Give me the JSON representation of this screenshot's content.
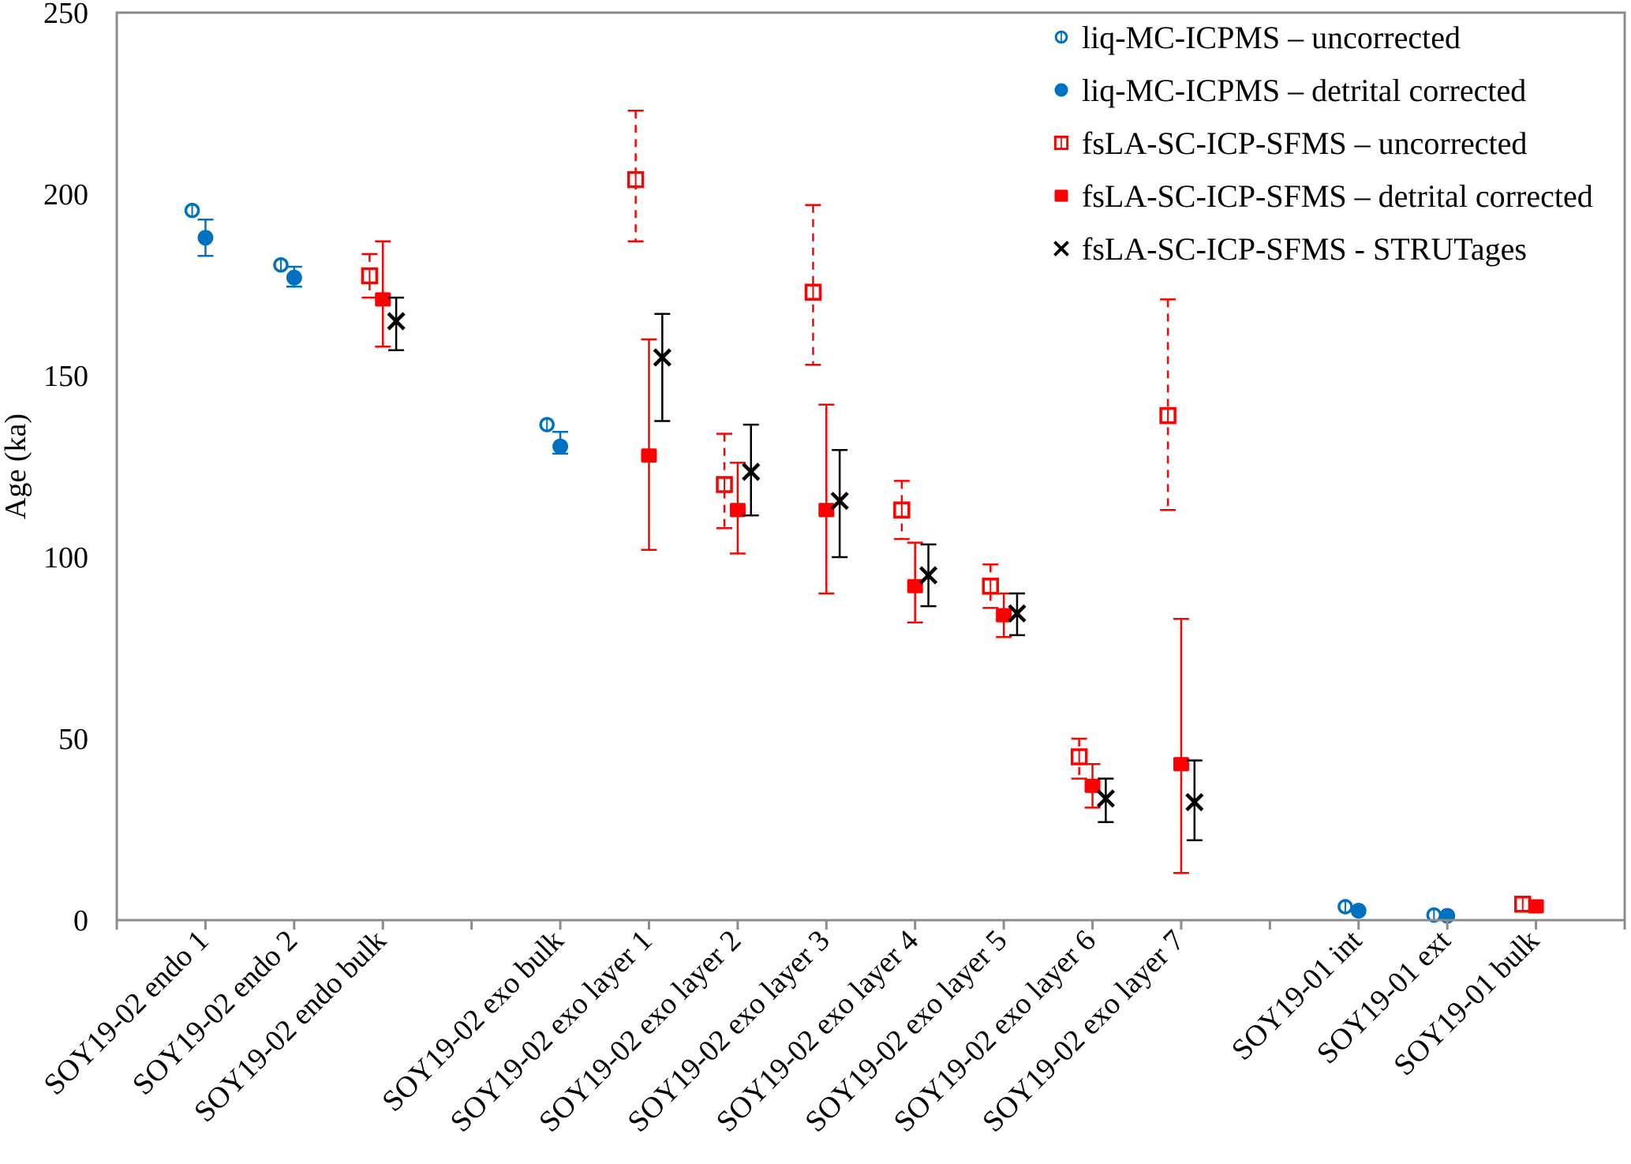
{
  "chart_data": {
    "type": "scatter",
    "title": "",
    "xlabel": "",
    "ylabel": "Age (ka)",
    "ylim": [
      0,
      250
    ],
    "yticks": [
      0,
      50,
      100,
      150,
      200,
      250
    ],
    "xlim": [
      0,
      17
    ],
    "grid": false,
    "legend_position": "top-right",
    "categories": [
      {
        "x": 1,
        "label": "SOY19-02 endo 1"
      },
      {
        "x": 2,
        "label": "SOY19-02 endo 2"
      },
      {
        "x": 3,
        "label": "SOY19-02 endo bulk"
      },
      {
        "x": 4,
        "label": ""
      },
      {
        "x": 5,
        "label": "SOY19-02 exo bulk"
      },
      {
        "x": 6,
        "label": "SOY19-02 exo layer 1"
      },
      {
        "x": 7,
        "label": "SOY19-02 exo layer 2"
      },
      {
        "x": 8,
        "label": "SOY19-02 exo layer 3"
      },
      {
        "x": 9,
        "label": "SOY19-02 exo layer 4"
      },
      {
        "x": 10,
        "label": "SOY19-02 exo layer 5"
      },
      {
        "x": 11,
        "label": "SOY19-02 exo layer 6"
      },
      {
        "x": 12,
        "label": "SOY19-02 exo layer 7"
      },
      {
        "x": 13,
        "label": ""
      },
      {
        "x": 14,
        "label": "SOY19-01 int"
      },
      {
        "x": 15,
        "label": "SOY19-01 ext"
      },
      {
        "x": 16,
        "label": "SOY19-01 bulk"
      }
    ],
    "series": [
      {
        "name": "liq-MC-ICPMS – uncorrected",
        "marker": "open-circle",
        "color": "#0070C0",
        "error_style": "solid",
        "offset": -0.15,
        "points": [
          {
            "x": 1,
            "y": 195.5
          },
          {
            "x": 2,
            "y": 180.5
          },
          {
            "x": 5,
            "y": 136.5
          },
          {
            "x": 14,
            "y": 3.7
          },
          {
            "x": 15,
            "y": 1.4
          }
        ]
      },
      {
        "name": "liq-MC-ICPMS – detrital corrected",
        "marker": "filled-circle",
        "color": "#0070C0",
        "error_style": "solid",
        "offset": 0,
        "points": [
          {
            "x": 1,
            "y": 188,
            "lo": 183,
            "hi": 193
          },
          {
            "x": 2,
            "y": 177,
            "lo": 174.5,
            "hi": 180
          },
          {
            "x": 5,
            "y": 130.5,
            "lo": 128.5,
            "hi": 134.5
          },
          {
            "x": 14,
            "y": 2.6
          },
          {
            "x": 15,
            "y": 1.2
          }
        ]
      },
      {
        "name": "fsLA-SC-ICP-SFMS – uncorrected",
        "marker": "open-square",
        "color": "#FF0000",
        "error_style": "dashed",
        "offset": -0.15,
        "points": [
          {
            "x": 3,
            "y": 177.5,
            "lo": 171.5,
            "hi": 183.5
          },
          {
            "x": 6,
            "y": 204,
            "lo": 187,
            "hi": 223
          },
          {
            "x": 7,
            "y": 120,
            "lo": 108,
            "hi": 134
          },
          {
            "x": 8,
            "y": 173,
            "lo": 153,
            "hi": 197
          },
          {
            "x": 9,
            "y": 113,
            "lo": 105,
            "hi": 121
          },
          {
            "x": 10,
            "y": 92,
            "lo": 86,
            "hi": 98
          },
          {
            "x": 11,
            "y": 45,
            "lo": 39,
            "hi": 50
          },
          {
            "x": 12,
            "y": 139,
            "lo": 113,
            "hi": 171
          },
          {
            "x": 16,
            "y": 4.4
          }
        ]
      },
      {
        "name": "fsLA-SC-ICP-SFMS – detrital corrected",
        "marker": "filled-square",
        "color": "#FF0000",
        "error_style": "solid",
        "offset": 0,
        "points": [
          {
            "x": 3,
            "y": 171,
            "lo": 158,
            "hi": 187
          },
          {
            "x": 6,
            "y": 128,
            "lo": 102,
            "hi": 160
          },
          {
            "x": 7,
            "y": 113,
            "lo": 101,
            "hi": 126
          },
          {
            "x": 8,
            "y": 113,
            "lo": 90,
            "hi": 142
          },
          {
            "x": 9,
            "y": 92,
            "lo": 82,
            "hi": 104
          },
          {
            "x": 10,
            "y": 84,
            "lo": 78,
            "hi": 90
          },
          {
            "x": 11,
            "y": 37,
            "lo": 31,
            "hi": 43
          },
          {
            "x": 12,
            "y": 43,
            "lo": 13,
            "hi": 83
          },
          {
            "x": 16,
            "y": 3.8
          }
        ]
      },
      {
        "name": "fsLA-SC-ICP-SFMS - STRUTages",
        "marker": "x",
        "color": "#000000",
        "error_style": "solid",
        "offset": 0.15,
        "points": [
          {
            "x": 3,
            "y": 165,
            "lo": 157,
            "hi": 171.5
          },
          {
            "x": 6,
            "y": 155,
            "lo": 137.5,
            "hi": 167
          },
          {
            "x": 7,
            "y": 123.5,
            "lo": 111.5,
            "hi": 136.5
          },
          {
            "x": 8,
            "y": 115.5,
            "lo": 100,
            "hi": 129.5
          },
          {
            "x": 9,
            "y": 95,
            "lo": 86.5,
            "hi": 103.5
          },
          {
            "x": 10,
            "y": 84.5,
            "lo": 78.5,
            "hi": 90
          },
          {
            "x": 11,
            "y": 33.5,
            "lo": 27,
            "hi": 39
          },
          {
            "x": 12,
            "y": 32.5,
            "lo": 22,
            "hi": 44
          }
        ]
      }
    ]
  }
}
